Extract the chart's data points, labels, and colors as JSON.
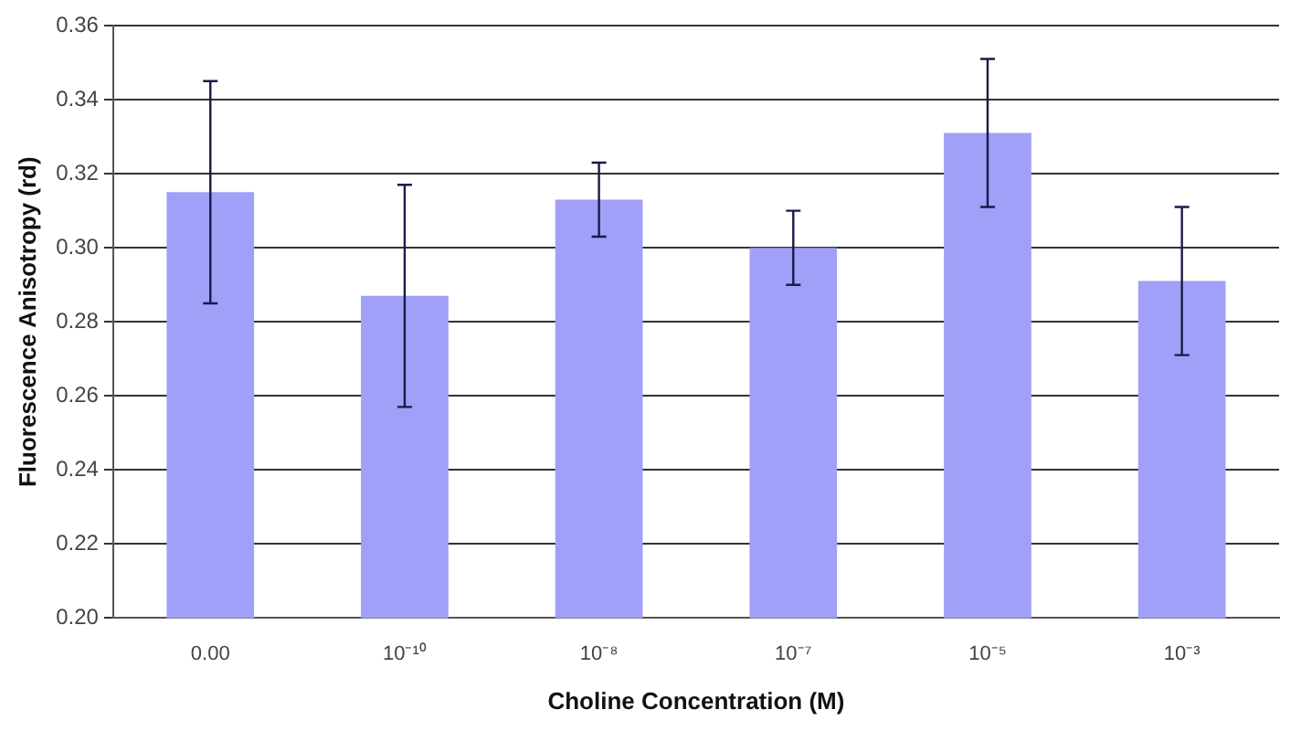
{
  "chart_data": {
    "type": "bar",
    "xlabel": "Choline Concentration (M)",
    "ylabel": "Fluorescence Anisotropy (rd)",
    "categories": [
      "0.00",
      "10⁻¹⁰",
      "10⁻⁸",
      "10⁻⁷",
      "10⁻⁵",
      "10⁻³"
    ],
    "values": [
      0.315,
      0.287,
      0.313,
      0.3,
      0.331,
      0.291
    ],
    "errors": [
      0.03,
      0.03,
      0.01,
      0.01,
      0.02,
      0.02
    ],
    "color": "#a0a0f8",
    "ylim": [
      0.2,
      0.36
    ],
    "yticks": [
      {
        "value": 0.2,
        "label": "0.20"
      },
      0.22,
      0.24,
      0.26,
      0.28,
      {
        "value": 0.3,
        "label": "0.30"
      },
      0.32,
      0.34,
      0.36
    ],
    "grid": "y",
    "legend": false
  }
}
